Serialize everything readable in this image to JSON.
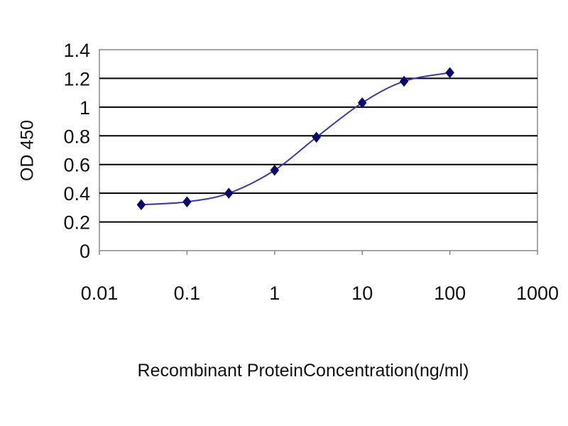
{
  "chart_data": {
    "type": "line",
    "title": "",
    "xlabel": "Recombinant ProteinConcentration(ng/ml)",
    "ylabel": "OD 450",
    "x_scale": "log",
    "xlim": [
      0.01,
      1000
    ],
    "ylim": [
      0,
      1.4
    ],
    "x_ticks": [
      0.01,
      0.1,
      1,
      10,
      100,
      1000
    ],
    "x_tick_labels": [
      "0.01",
      "0.1",
      "1",
      "10",
      "100",
      "1000"
    ],
    "y_ticks": [
      0,
      0.2,
      0.4,
      0.6,
      0.8,
      1,
      1.2,
      1.4
    ],
    "y_tick_labels": [
      "0",
      "0.2",
      "0.4",
      "0.6",
      "0.8",
      "1",
      "1.2",
      "1.4"
    ],
    "grid": "horizontal",
    "legend": "none",
    "series": [
      {
        "x": [
          0.03,
          0.1,
          0.3,
          1,
          3,
          10,
          30,
          100
        ],
        "y": [
          0.32,
          0.34,
          0.4,
          0.56,
          0.79,
          1.03,
          1.18,
          1.24
        ]
      }
    ],
    "colors": {
      "line": "#3a3aa8",
      "marker": "#0a0a6e",
      "grid": "#000000",
      "axis": "#888888",
      "background": "#ffffff"
    }
  }
}
